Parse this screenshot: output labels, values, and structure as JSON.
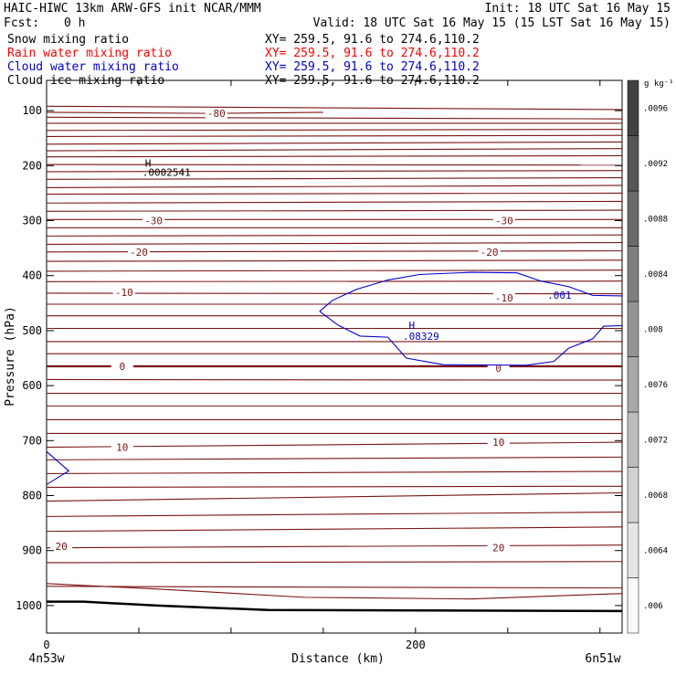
{
  "header": {
    "title_left": "HAIC-HIWC 13km ARW-GFS init   NCAR/MMM",
    "init": "Init: 18 UTC Sat 16 May 15",
    "fcst_label": "Fcst:",
    "fcst_value": "0 h",
    "valid": "Valid: 18 UTC Sat 16 May 15 (15 LST Sat 16 May 15)"
  },
  "fields": [
    {
      "name": "Snow mixing ratio",
      "xy": "XY= 259.5, 91.6 to 274.6,110.2",
      "color": "#000000"
    },
    {
      "name": "Rain water mixing ratio",
      "xy": "XY= 259.5, 91.6 to 274.6,110.2",
      "color": "#ff0000"
    },
    {
      "name": "Cloud water mixing ratio",
      "xy": "XY= 259.5, 91.6 to 274.6,110.2",
      "color": "#0000cc"
    },
    {
      "name": "Cloud ice mixing ratio",
      "xy": "XY= 259.5, 91.6 to 274.6,110.2",
      "color": "#000000"
    }
  ],
  "colorbar": {
    "unit": "g kg⁻¹",
    "labels": [
      ".006",
      ".0064",
      ".0068",
      ".0072",
      ".0076",
      ".008",
      ".0084",
      ".0088",
      ".0092",
      ".0096"
    ]
  },
  "chart_data": {
    "type": "cross-section",
    "xlabel": "Distance (km)",
    "ylabel": "Pressure (hPa)",
    "xlim": [
      0,
      312
    ],
    "ylim": [
      1050,
      45
    ],
    "x_ticks": [
      0,
      200
    ],
    "y_ticks": [
      100,
      200,
      300,
      400,
      500,
      600,
      700,
      800,
      900,
      1000
    ],
    "x_endpoints": [
      "4n53w",
      "6n51w"
    ],
    "colors": {
      "temperature_contour": "#7a1414",
      "cloud_water_contour": "#0000cc",
      "terrain": "#000000"
    },
    "temperature_labels": [
      {
        "label": "-80",
        "x": 92,
        "p": 105
      },
      {
        "label": "-30",
        "x": 58,
        "p": 300
      },
      {
        "label": "-30",
        "x": 248,
        "p": 300
      },
      {
        "label": "-20",
        "x": 50,
        "p": 357
      },
      {
        "label": "-20",
        "x": 240,
        "p": 357
      },
      {
        "label": "-10",
        "x": 42,
        "p": 430
      },
      {
        "label": "-10",
        "x": 248,
        "p": 440
      },
      {
        "label": "0",
        "x": 41,
        "p": 565
      },
      {
        "label": "0",
        "x": 245,
        "p": 568
      },
      {
        "label": "10",
        "x": 41,
        "p": 712
      },
      {
        "label": "10",
        "x": 245,
        "p": 703
      },
      {
        "label": "20",
        "x": 8,
        "p": 892
      },
      {
        "label": "20",
        "x": 245,
        "p": 895
      }
    ],
    "cloud_water_labels": [
      {
        "label": ".001",
        "x": 278,
        "p": 435
      },
      {
        "label": "H",
        "x": 198,
        "p": 490
      },
      {
        "label": ".08329",
        "x": 203,
        "p": 510
      }
    ],
    "cloud_ice_labels": [
      {
        "label": "H",
        "x": 55,
        "p": 195
      },
      {
        "label": ".0002541",
        "x": 65,
        "p": 212
      }
    ]
  }
}
